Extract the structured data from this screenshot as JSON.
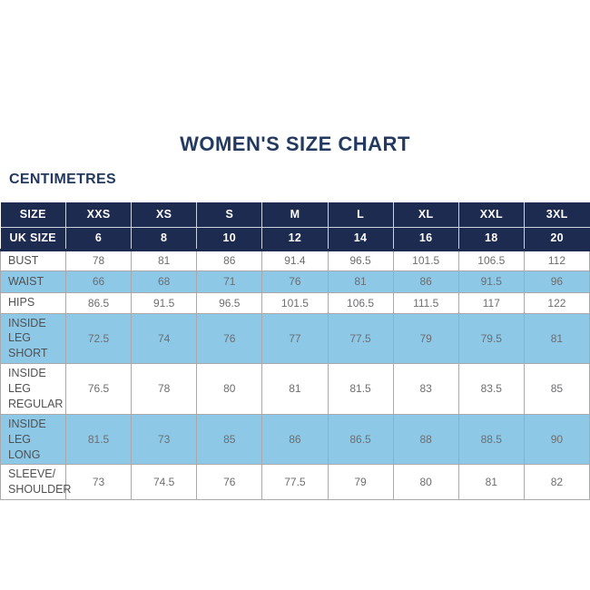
{
  "page": {
    "title": "WOMEN'S SIZE CHART",
    "subtitle": "CENTIMETRES"
  },
  "colors": {
    "navy_header": "#1e2b50",
    "highlight_blue": "#8dc8e6",
    "title_text": "#233a60",
    "label_text": "#505153",
    "value_text": "#6d6e71",
    "body_border": "#a7a9ac",
    "header_divider": "#c9d2de"
  },
  "chart_data": {
    "type": "table",
    "title": "WOMEN'S SIZE CHART",
    "units_label": "CENTIMETRES",
    "header": [
      "SIZE",
      "XXS",
      "XS",
      "S",
      "M",
      "L",
      "XL",
      "XXL",
      "3XL"
    ],
    "uk_size_row": {
      "label": "UK SIZE",
      "values": [
        "6",
        "8",
        "10",
        "12",
        "14",
        "16",
        "18",
        "20"
      ]
    },
    "rows": [
      {
        "label": "BUST",
        "values": [
          "78",
          "81",
          "86",
          "91.4",
          "96.5",
          "101.5",
          "106.5",
          "112"
        ],
        "highlight": false
      },
      {
        "label": "WAIST",
        "values": [
          "66",
          "68",
          "71",
          "76",
          "81",
          "86",
          "91.5",
          "96"
        ],
        "highlight": true
      },
      {
        "label": "HIPS",
        "values": [
          "86.5",
          "91.5",
          "96.5",
          "101.5",
          "106.5",
          "111.5",
          "117",
          "122"
        ],
        "highlight": false
      },
      {
        "label": "INSIDE LEG\nSHORT",
        "values": [
          "72.5",
          "74",
          "76",
          "77",
          "77.5",
          "79",
          "79.5",
          "81"
        ],
        "highlight": true
      },
      {
        "label": "INSIDE LEG\nREGULAR",
        "values": [
          "76.5",
          "78",
          "80",
          "81",
          "81.5",
          "83",
          "83.5",
          "85"
        ],
        "highlight": false
      },
      {
        "label": "INSIDE LEG\nLONG",
        "values": [
          "81.5",
          "73",
          "85",
          "86",
          "86.5",
          "88",
          "88.5",
          "90"
        ],
        "highlight": true
      },
      {
        "label": "SLEEVE/\nSHOULDER",
        "values": [
          "73",
          "74.5",
          "76",
          "77.5",
          "79",
          "80",
          "81",
          "82"
        ],
        "highlight": false
      }
    ],
    "layout": {
      "grid": true,
      "legend": false
    }
  }
}
